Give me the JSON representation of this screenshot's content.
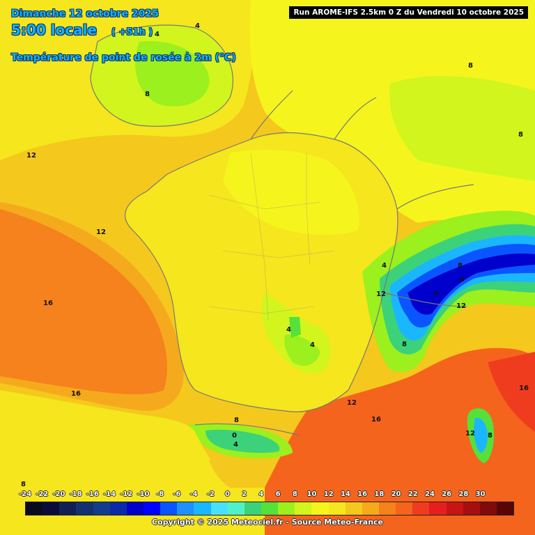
{
  "header": {
    "date": "Dimanche 12 octobre 2025",
    "time": "5:00 locale",
    "offset": "( +51h )",
    "parameter": "Température de point de rosée à 2m (°C)"
  },
  "run_info": "Run AROME-IFS 2.5km 0 Z du Vendredi 10 octobre 2025",
  "legend": {
    "ticks": [
      "-24",
      "-22",
      "-20",
      "-18",
      "-16",
      "-14",
      "-12",
      "-10",
      "-8",
      "-6",
      "-4",
      "-2",
      "0",
      "2",
      "4",
      "6",
      "8",
      "10",
      "12",
      "14",
      "16",
      "18",
      "20",
      "22",
      "24",
      "26",
      "28",
      "30"
    ],
    "colors": [
      "#0a0a1e",
      "#0b0b3a",
      "#121f55",
      "#123170",
      "#143c8c",
      "#0a2aa8",
      "#0000cc",
      "#0000ff",
      "#0a55ff",
      "#1e90ff",
      "#1ab7ff",
      "#49e0ff",
      "#4ff2c8",
      "#3cd27a",
      "#55e13a",
      "#9bf01d",
      "#d2f51d",
      "#f5f51d",
      "#f5e61d",
      "#f5c81d",
      "#f5aa1d",
      "#f5821d",
      "#f5641d",
      "#f03c1e",
      "#e61e1e",
      "#c81414",
      "#a50f0f",
      "#820a0a",
      "#5a0505"
    ]
  },
  "contour_labels": [
    "4",
    "4",
    "8",
    "8",
    "12",
    "12",
    "12",
    "4",
    "16",
    "16",
    "8",
    "8",
    "4",
    "4",
    "0",
    "4",
    "8",
    "4",
    "12",
    "16",
    "12",
    "8",
    "8",
    "4",
    "12",
    "8",
    "16"
  ],
  "copyright": "Copyright © 2025 Meteociel.fr - Source Meteo-France"
}
